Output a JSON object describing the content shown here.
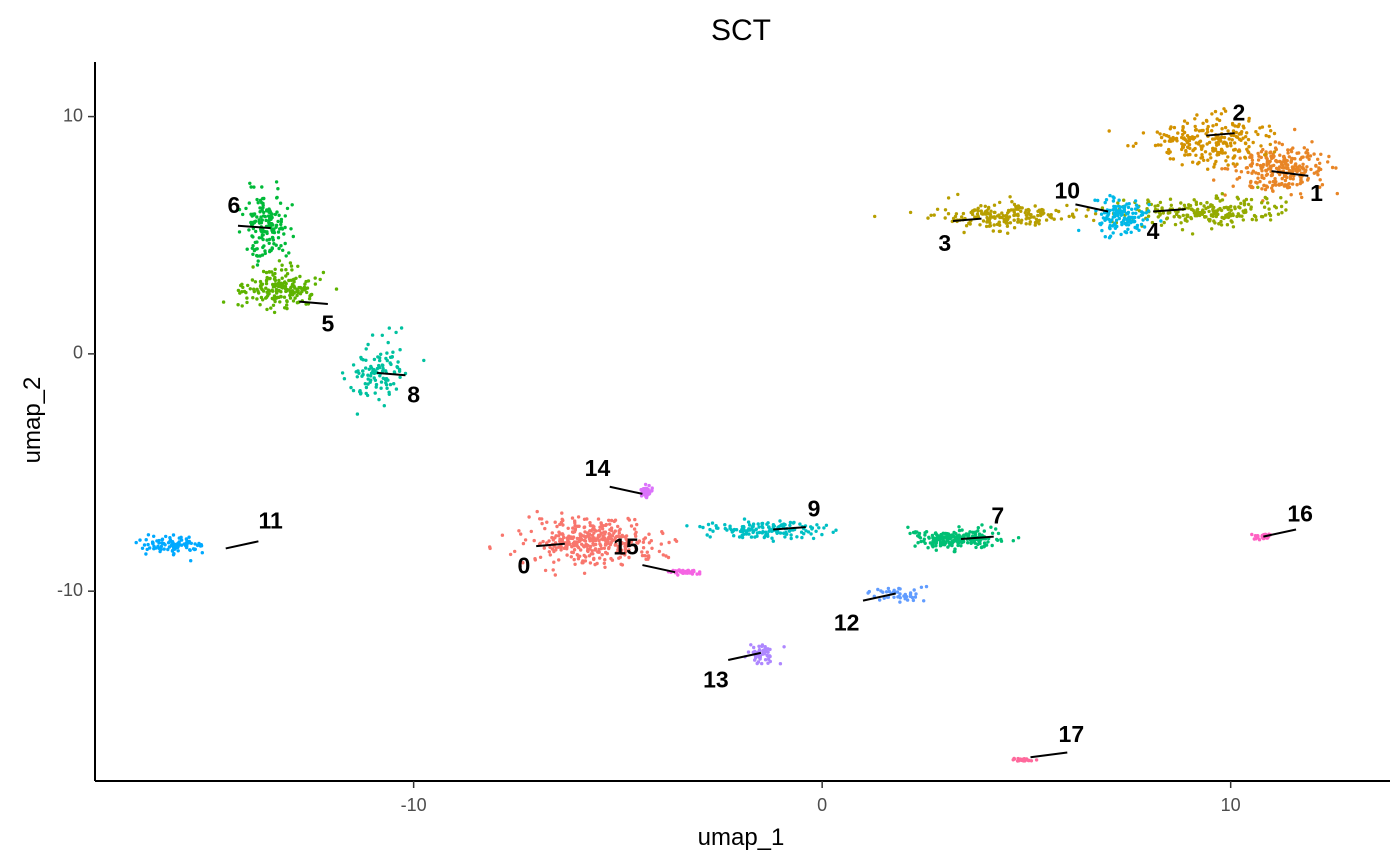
{
  "chart_data": {
    "type": "scatter",
    "title": "SCT",
    "xlabel": "umap_1",
    "ylabel": "umap_2",
    "xlim": [
      -17.8,
      13.9
    ],
    "ylim": [
      -18.0,
      12.3
    ],
    "x_ticks": [
      -10,
      0,
      10
    ],
    "x_tick_labels": [
      "-10",
      "0",
      "10"
    ],
    "y_ticks": [
      -10,
      0,
      10
    ],
    "y_tick_labels": [
      "-10",
      "0",
      "10"
    ],
    "grid": false,
    "legend": "none",
    "clusters": [
      {
        "label": "0",
        "color": "#F8766D",
        "center": [
          -5.7,
          -7.9
        ],
        "spread": [
          1.6,
          0.95
        ],
        "n": 380,
        "label_pos": [
          -7.3,
          -9.0
        ],
        "line": [
          [
            -7.0,
            -8.1
          ],
          [
            -6.3,
            -8.0
          ]
        ]
      },
      {
        "label": "1",
        "color": "#E88526",
        "center": [
          11.2,
          7.8
        ],
        "spread": [
          1.1,
          1.0
        ],
        "n": 260,
        "label_pos": [
          12.1,
          6.7
        ],
        "line": [
          [
            11.0,
            7.7
          ],
          [
            11.9,
            7.5
          ]
        ]
      },
      {
        "label": "2",
        "color": "#D39200",
        "center": [
          9.5,
          9.0
        ],
        "spread": [
          1.5,
          1.0
        ],
        "n": 240,
        "label_pos": [
          10.2,
          10.1
        ],
        "line": [
          [
            9.4,
            9.2
          ],
          [
            10.1,
            9.3
          ]
        ]
      },
      {
        "label": "3",
        "color": "#B79F00",
        "center": [
          4.4,
          5.8
        ],
        "spread": [
          1.7,
          0.55
        ],
        "n": 190,
        "label_pos": [
          3.0,
          4.6
        ],
        "line": [
          [
            3.2,
            5.6
          ],
          [
            3.9,
            5.7
          ]
        ]
      },
      {
        "label": "4",
        "color": "#93AA00",
        "center": [
          9.4,
          6.0
        ],
        "spread": [
          1.9,
          0.6
        ],
        "n": 220,
        "label_pos": [
          8.1,
          5.1
        ],
        "line": [
          [
            8.1,
            6.0
          ],
          [
            8.9,
            6.1
          ]
        ]
      },
      {
        "label": "5",
        "color": "#5EB300",
        "center": [
          -13.3,
          2.7
        ],
        "spread": [
          0.9,
          0.9
        ],
        "n": 190,
        "label_pos": [
          -12.1,
          1.2
        ],
        "line": [
          [
            -12.8,
            2.2
          ],
          [
            -12.1,
            2.1
          ]
        ]
      },
      {
        "label": "6",
        "color": "#00BA38",
        "center": [
          -13.6,
          5.4
        ],
        "spread": [
          0.5,
          1.3
        ],
        "n": 160,
        "label_pos": [
          -14.4,
          6.2
        ],
        "line": [
          [
            -14.3,
            5.4
          ],
          [
            -13.5,
            5.3
          ]
        ]
      },
      {
        "label": "7",
        "color": "#00BF74",
        "center": [
          3.3,
          -7.8
        ],
        "spread": [
          1.2,
          0.4
        ],
        "n": 220,
        "label_pos": [
          4.3,
          -6.9
        ],
        "line": [
          [
            3.4,
            -7.8
          ],
          [
            4.2,
            -7.7
          ]
        ]
      },
      {
        "label": "8",
        "color": "#00C19F",
        "center": [
          -10.9,
          -0.8
        ],
        "spread": [
          0.6,
          1.3
        ],
        "n": 110,
        "label_pos": [
          -10.0,
          -1.8
        ],
        "line": [
          [
            -10.9,
            -0.8
          ],
          [
            -10.2,
            -0.9
          ]
        ]
      },
      {
        "label": "9",
        "color": "#00BFC4",
        "center": [
          -1.3,
          -7.4
        ],
        "spread": [
          1.6,
          0.35
        ],
        "n": 150,
        "label_pos": [
          -0.2,
          -6.6
        ],
        "line": [
          [
            -1.2,
            -7.4
          ],
          [
            -0.4,
            -7.3
          ]
        ]
      },
      {
        "label": "10",
        "color": "#00B8E7",
        "center": [
          7.3,
          5.8
        ],
        "spread": [
          0.6,
          0.7
        ],
        "n": 140,
        "label_pos": [
          6.0,
          6.8
        ],
        "line": [
          [
            6.2,
            6.3
          ],
          [
            7.0,
            6.0
          ]
        ]
      },
      {
        "label": "11",
        "color": "#00A9FF",
        "center": [
          -15.9,
          -8.1
        ],
        "spread": [
          0.8,
          0.4
        ],
        "n": 100,
        "label_pos": [
          -13.5,
          -7.1
        ],
        "line": [
          [
            -14.6,
            -8.2
          ],
          [
            -13.8,
            -7.9
          ]
        ]
      },
      {
        "label": "12",
        "color": "#619CFF",
        "center": [
          2.0,
          -10.2
        ],
        "spread": [
          0.7,
          0.35
        ],
        "n": 45,
        "label_pos": [
          0.6,
          -11.4
        ],
        "line": [
          [
            1.0,
            -10.4
          ],
          [
            1.8,
            -10.1
          ]
        ]
      },
      {
        "label": "13",
        "color": "#AE87FF",
        "center": [
          -1.5,
          -12.6
        ],
        "spread": [
          0.3,
          0.4
        ],
        "n": 55,
        "label_pos": [
          -2.6,
          -13.8
        ],
        "line": [
          [
            -2.3,
            -12.9
          ],
          [
            -1.5,
            -12.6
          ]
        ]
      },
      {
        "label": "14",
        "color": "#DB72FB",
        "center": [
          -4.3,
          -5.8
        ],
        "spread": [
          0.15,
          0.25
        ],
        "n": 45,
        "label_pos": [
          -5.5,
          -4.9
        ],
        "line": [
          [
            -5.2,
            -5.6
          ],
          [
            -4.4,
            -5.9
          ]
        ]
      },
      {
        "label": "15",
        "color": "#F564E3",
        "center": [
          -3.3,
          -9.2
        ],
        "spread": [
          0.4,
          0.1
        ],
        "n": 35,
        "label_pos": [
          -4.8,
          -8.2
        ],
        "line": [
          [
            -4.4,
            -8.9
          ],
          [
            -3.6,
            -9.2
          ]
        ]
      },
      {
        "label": "16",
        "color": "#FF61C3",
        "center": [
          10.8,
          -7.7
        ],
        "spread": [
          0.25,
          0.12
        ],
        "n": 35,
        "label_pos": [
          11.7,
          -6.8
        ],
        "line": [
          [
            10.8,
            -7.7
          ],
          [
            11.6,
            -7.4
          ]
        ]
      },
      {
        "label": "17",
        "color": "#FF699C",
        "center": [
          4.9,
          -17.1
        ],
        "spread": [
          0.25,
          0.07
        ],
        "n": 25,
        "label_pos": [
          6.1,
          -16.1
        ],
        "line": [
          [
            5.1,
            -17.0
          ],
          [
            6.0,
            -16.8
          ]
        ]
      }
    ]
  }
}
